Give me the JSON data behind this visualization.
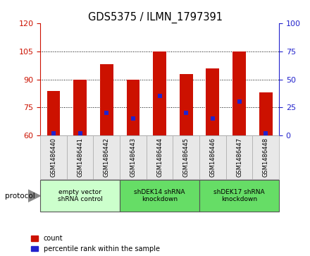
{
  "title": "GDS5375 / ILMN_1797391",
  "samples": [
    "GSM1486440",
    "GSM1486441",
    "GSM1486442",
    "GSM1486443",
    "GSM1486444",
    "GSM1486445",
    "GSM1486446",
    "GSM1486447",
    "GSM1486448"
  ],
  "counts": [
    84,
    90,
    98,
    90,
    105,
    93,
    96,
    105,
    83
  ],
  "percentile_ranks": [
    2,
    2,
    20,
    15,
    35,
    20,
    15,
    30,
    2
  ],
  "bar_color": "#cc1100",
  "blue_color": "#2222cc",
  "ylim_left": [
    60,
    120
  ],
  "ylim_right": [
    0,
    100
  ],
  "yticks_left": [
    60,
    75,
    90,
    105,
    120
  ],
  "yticks_right": [
    0,
    25,
    50,
    75,
    100
  ],
  "groups": [
    {
      "label": "empty vector\nshRNA control",
      "start": 0,
      "end": 3,
      "color": "#ccffcc"
    },
    {
      "label": "shDEK14 shRNA\nknockdown",
      "start": 3,
      "end": 6,
      "color": "#66dd66"
    },
    {
      "label": "shDEK17 shRNA\nknockdown",
      "start": 6,
      "end": 9,
      "color": "#66dd66"
    }
  ],
  "legend_count_label": "count",
  "legend_pct_label": "percentile rank within the sample",
  "protocol_label": "protocol",
  "bar_width": 0.5,
  "figsize": [
    4.4,
    3.63
  ],
  "dpi": 100
}
